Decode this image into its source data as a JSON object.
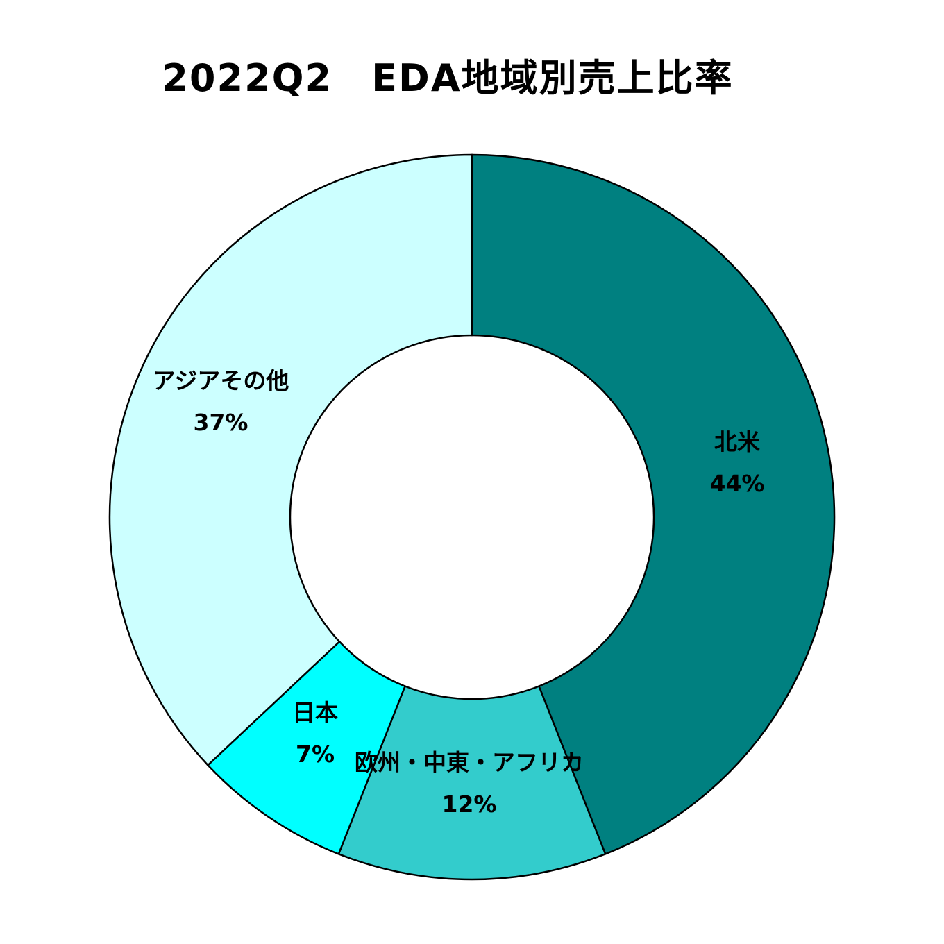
{
  "chart_data": {
    "type": "pie",
    "variant": "donut",
    "title": "2022Q2　EDA地域別売上比率",
    "start_angle_deg": 0,
    "direction": "clockwise",
    "slices": [
      {
        "name": "北米",
        "value": 44,
        "label": "44%",
        "color": "#008080"
      },
      {
        "name": "欧州・中東・アフリカ",
        "value": 12,
        "label": "12%",
        "color": "#33CCCC"
      },
      {
        "name": "日本",
        "value": 7,
        "label": "7%",
        "color": "#00FFFF"
      },
      {
        "name": "アジアその他",
        "value": 37,
        "label": "37%",
        "color": "#CCFFFF"
      }
    ],
    "outline_color": "#000000"
  }
}
